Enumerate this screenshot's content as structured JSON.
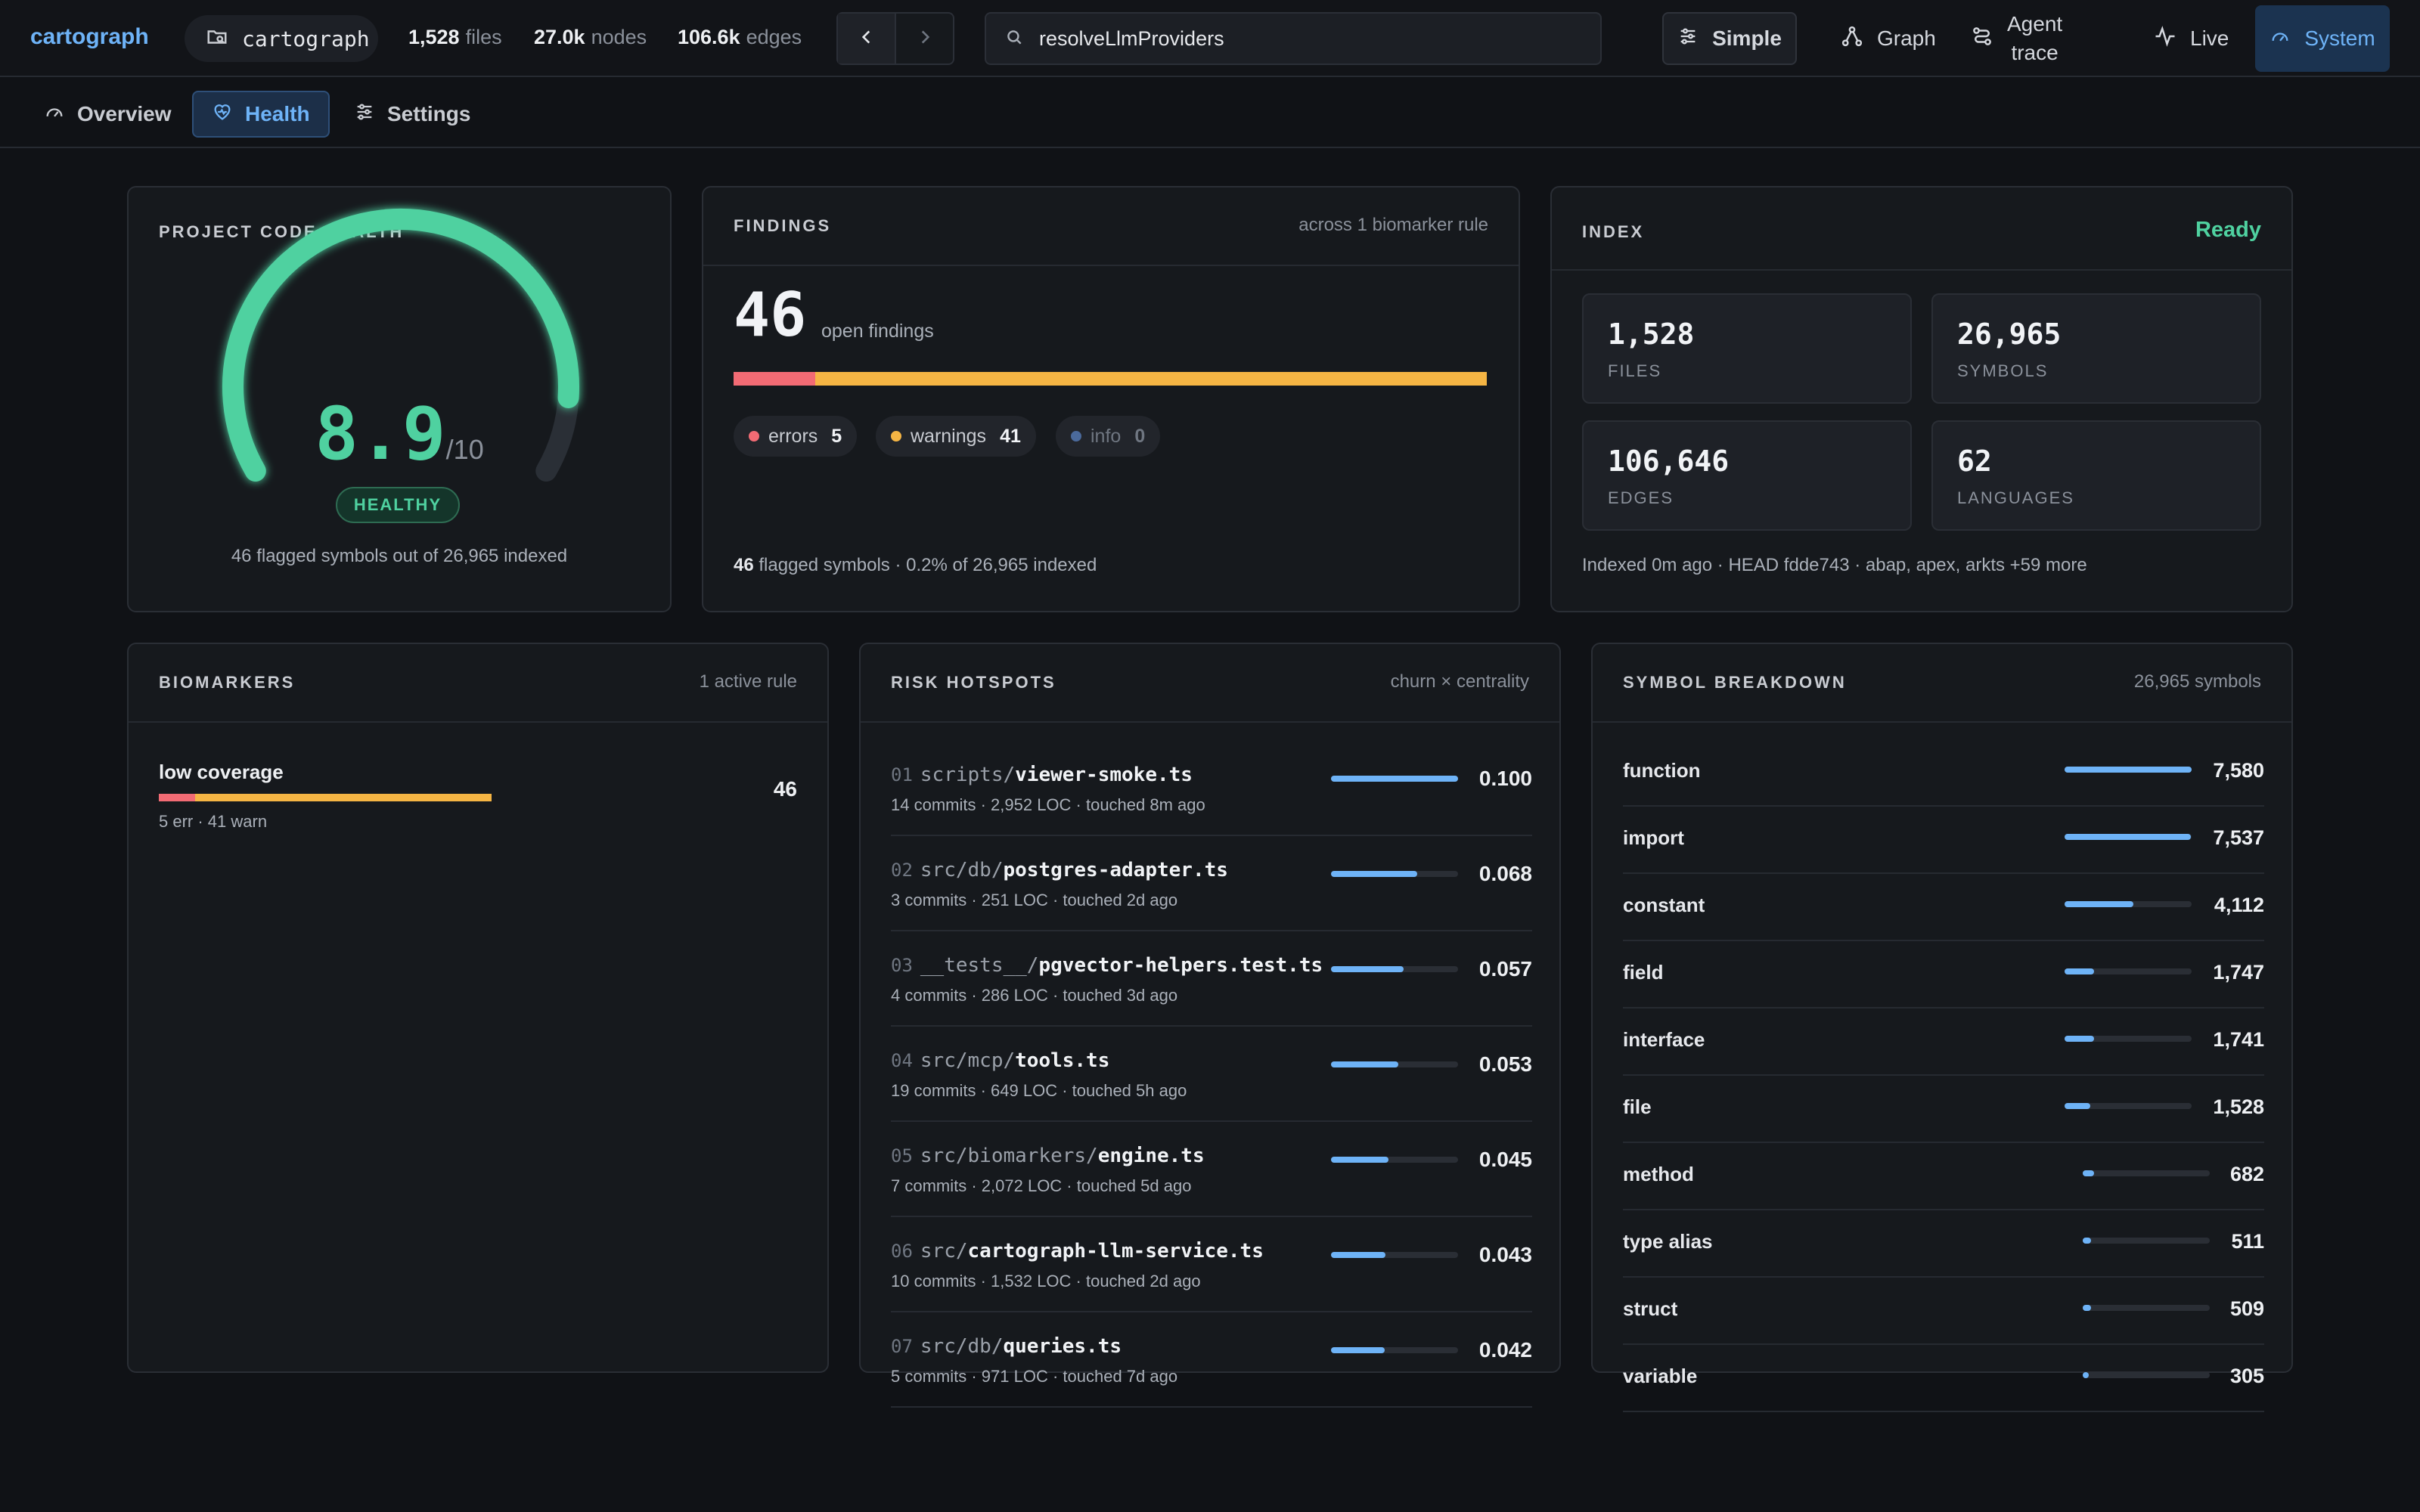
{
  "topbar": {
    "brand": "cartograph",
    "repo": "cartograph",
    "stats": [
      {
        "value": "1,528",
        "unit": "files"
      },
      {
        "value": "27.0k",
        "unit": "nodes"
      },
      {
        "value": "106.6k",
        "unit": "edges"
      }
    ],
    "search_value": "resolveLlmProviders",
    "simple_label": "Simple",
    "graph_label": "Graph",
    "agent_trace_line1": "Agent",
    "agent_trace_line2": "trace",
    "live_label": "Live",
    "system_label": "System"
  },
  "tabs": [
    {
      "label": "Overview",
      "icon": "gauge-icon"
    },
    {
      "label": "Health",
      "icon": "heart-pulse-icon",
      "active": true
    },
    {
      "label": "Settings",
      "icon": "sliders-icon"
    }
  ],
  "health": {
    "title": "PROJECT CODE HEALTH",
    "score": "8.9",
    "score_max": "/10",
    "score_fraction": 0.89,
    "status": "HEALTHY",
    "footer": "46 flagged symbols out of 26,965 indexed"
  },
  "findings": {
    "title": "FINDINGS",
    "subtitle": "across 1 biomarker rule",
    "count": "46",
    "count_label": "open findings",
    "chips": [
      {
        "label": "errors",
        "value": "5",
        "color": "#f26b74"
      },
      {
        "label": "warnings",
        "value": "41",
        "color": "#f5b544"
      },
      {
        "label": "info",
        "value": "0",
        "color": "#4b6a9b"
      }
    ],
    "error_fraction": 0.1087,
    "footer_count": "46",
    "footer_text": "flagged symbols · 0.2% of 26,965 indexed"
  },
  "index": {
    "title": "INDEX",
    "status": "Ready",
    "boxes": [
      {
        "value": "1,528",
        "label": "FILES"
      },
      {
        "value": "26,965",
        "label": "SYMBOLS"
      },
      {
        "value": "106,646",
        "label": "EDGES"
      },
      {
        "value": "62",
        "label": "LANGUAGES"
      }
    ],
    "footer": "Indexed 0m ago · HEAD fdde743 · abap, apex, arkts +59 more"
  },
  "biomarkers": {
    "title": "BIOMARKERS",
    "subtitle": "1 active rule",
    "rules": [
      {
        "name": "low coverage",
        "detail": "5 err · 41 warn",
        "count": "46",
        "err": 5,
        "warn": 41
      }
    ]
  },
  "hotspots": {
    "title": "RISK HOTSPOTS",
    "subtitle": "churn × centrality",
    "rows": [
      {
        "idx": "01",
        "dir": "scripts/",
        "file": "viewer-smoke.ts",
        "meta": "14 commits · 2,952 LOC · touched 8m ago",
        "score": "0.100",
        "fraction": 1.0
      },
      {
        "idx": "02",
        "dir": "src/db/",
        "file": "postgres-adapter.ts",
        "meta": "3 commits · 251 LOC · touched 2d ago",
        "score": "0.068",
        "fraction": 0.68
      },
      {
        "idx": "03",
        "dir": "__tests__/",
        "file": "pgvector-helpers.test.ts",
        "meta": "4 commits · 286 LOC · touched 3d ago",
        "score": "0.057",
        "fraction": 0.57
      },
      {
        "idx": "04",
        "dir": "src/mcp/",
        "file": "tools.ts",
        "meta": "19 commits · 649 LOC · touched 5h ago",
        "score": "0.053",
        "fraction": 0.53
      },
      {
        "idx": "05",
        "dir": "src/biomarkers/",
        "file": "engine.ts",
        "meta": "7 commits · 2,072 LOC · touched 5d ago",
        "score": "0.045",
        "fraction": 0.45
      },
      {
        "idx": "06",
        "dir": "src/",
        "file": "cartograph-llm-service.ts",
        "meta": "10 commits · 1,532 LOC · touched 2d ago",
        "score": "0.043",
        "fraction": 0.43
      },
      {
        "idx": "07",
        "dir": "src/db/",
        "file": "queries.ts",
        "meta": "5 commits · 971 LOC · touched 7d ago",
        "score": "0.042",
        "fraction": 0.42
      }
    ]
  },
  "symbols": {
    "title": "SYMBOL BREAKDOWN",
    "subtitle": "26,965 symbols",
    "rows": [
      {
        "name": "function",
        "count": "7,580",
        "value": 7580
      },
      {
        "name": "import",
        "count": "7,537",
        "value": 7537
      },
      {
        "name": "constant",
        "count": "4,112",
        "value": 4112
      },
      {
        "name": "field",
        "count": "1,747",
        "value": 1747
      },
      {
        "name": "interface",
        "count": "1,741",
        "value": 1741
      },
      {
        "name": "file",
        "count": "1,528",
        "value": 1528
      },
      {
        "name": "method",
        "count": "682",
        "value": 682
      },
      {
        "name": "type alias",
        "count": "511",
        "value": 511
      },
      {
        "name": "struct",
        "count": "509",
        "value": 509
      },
      {
        "name": "variable",
        "count": "305",
        "value": 305
      }
    ]
  },
  "colors": {
    "accent": "#6eb3f7",
    "healthy": "#4fd1a0",
    "error": "#f26b74",
    "warning": "#f5b544"
  }
}
